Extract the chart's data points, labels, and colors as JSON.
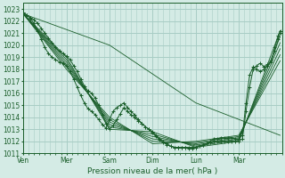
{
  "title": "",
  "xlabel": "Pression niveau de la mer( hPa )",
  "ylabel": "",
  "bg_color": "#d4ebe5",
  "grid_color": "#a8cdc5",
  "line_color": "#1a5e2a",
  "ylim": [
    1011,
    1023.5
  ],
  "yticks": [
    1011,
    1012,
    1013,
    1014,
    1015,
    1016,
    1017,
    1018,
    1019,
    1020,
    1021,
    1022,
    1023
  ],
  "day_labels": [
    "Ven",
    "Mer",
    "Sam",
    "Dim",
    "Lun",
    "Mar"
  ],
  "day_positions": [
    0,
    24,
    48,
    72,
    96,
    120
  ],
  "total_hours": 144,
  "series": [
    {
      "points": [
        [
          0,
          1022.7
        ],
        [
          2,
          1022.5
        ],
        [
          4,
          1022.3
        ],
        [
          6,
          1022.1
        ],
        [
          8,
          1021.8
        ],
        [
          10,
          1021.4
        ],
        [
          12,
          1021.0
        ],
        [
          14,
          1020.6
        ],
        [
          16,
          1020.2
        ],
        [
          18,
          1019.8
        ],
        [
          20,
          1019.5
        ],
        [
          22,
          1019.3
        ],
        [
          24,
          1019.1
        ],
        [
          26,
          1018.8
        ],
        [
          28,
          1018.3
        ],
        [
          30,
          1017.8
        ],
        [
          32,
          1017.2
        ],
        [
          34,
          1016.6
        ],
        [
          36,
          1016.2
        ],
        [
          38,
          1016.0
        ],
        [
          40,
          1015.6
        ],
        [
          42,
          1015.0
        ],
        [
          44,
          1014.2
        ],
        [
          46,
          1013.5
        ],
        [
          48,
          1013.0
        ],
        [
          50,
          1013.3
        ],
        [
          52,
          1013.8
        ],
        [
          54,
          1014.3
        ],
        [
          56,
          1014.8
        ],
        [
          58,
          1014.5
        ],
        [
          60,
          1014.2
        ],
        [
          62,
          1014.0
        ],
        [
          64,
          1013.7
        ],
        [
          66,
          1013.5
        ],
        [
          68,
          1013.2
        ],
        [
          70,
          1013.0
        ],
        [
          72,
          1012.8
        ],
        [
          74,
          1012.5
        ],
        [
          76,
          1012.2
        ],
        [
          78,
          1012.0
        ],
        [
          80,
          1011.8
        ],
        [
          82,
          1011.6
        ],
        [
          84,
          1011.5
        ],
        [
          86,
          1011.5
        ],
        [
          88,
          1011.5
        ],
        [
          90,
          1011.5
        ],
        [
          92,
          1011.4
        ],
        [
          94,
          1011.4
        ],
        [
          96,
          1011.5
        ],
        [
          98,
          1011.6
        ],
        [
          100,
          1011.7
        ],
        [
          102,
          1011.8
        ],
        [
          104,
          1011.9
        ],
        [
          106,
          1012.0
        ],
        [
          108,
          1012.0
        ],
        [
          110,
          1012.0
        ],
        [
          112,
          1012.0
        ],
        [
          114,
          1012.0
        ],
        [
          116,
          1012.0
        ],
        [
          118,
          1012.0
        ],
        [
          120,
          1012.0
        ],
        [
          122,
          1012.2
        ],
        [
          124,
          1014.5
        ],
        [
          126,
          1016.5
        ],
        [
          128,
          1018.0
        ],
        [
          130,
          1018.3
        ],
        [
          132,
          1018.5
        ],
        [
          134,
          1018.2
        ],
        [
          136,
          1018.4
        ],
        [
          138,
          1018.7
        ],
        [
          140,
          1019.5
        ],
        [
          142,
          1020.5
        ],
        [
          143,
          1021.0
        ]
      ],
      "style": "dotted_marker",
      "marker": "+"
    },
    {
      "points": [
        [
          0,
          1022.6
        ],
        [
          24,
          1019.0
        ],
        [
          48,
          1013.0
        ],
        [
          72,
          1012.8
        ],
        [
          96,
          1011.5
        ],
        [
          120,
          1012.0
        ],
        [
          143,
          1021.2
        ]
      ],
      "style": "line_only"
    },
    {
      "points": [
        [
          0,
          1022.6
        ],
        [
          24,
          1018.8
        ],
        [
          48,
          1013.2
        ],
        [
          72,
          1012.6
        ],
        [
          96,
          1011.6
        ],
        [
          120,
          1012.1
        ],
        [
          143,
          1020.7
        ]
      ],
      "style": "line_only"
    },
    {
      "points": [
        [
          0,
          1022.6
        ],
        [
          24,
          1018.6
        ],
        [
          48,
          1013.4
        ],
        [
          72,
          1012.4
        ],
        [
          96,
          1011.7
        ],
        [
          120,
          1012.2
        ],
        [
          143,
          1020.2
        ]
      ],
      "style": "line_only"
    },
    {
      "points": [
        [
          0,
          1022.6
        ],
        [
          24,
          1018.4
        ],
        [
          48,
          1013.6
        ],
        [
          72,
          1012.2
        ],
        [
          96,
          1011.8
        ],
        [
          120,
          1012.3
        ],
        [
          143,
          1019.7
        ]
      ],
      "style": "line_only"
    },
    {
      "points": [
        [
          0,
          1022.6
        ],
        [
          24,
          1018.2
        ],
        [
          48,
          1013.8
        ],
        [
          72,
          1012.0
        ],
        [
          96,
          1011.9
        ],
        [
          120,
          1012.4
        ],
        [
          143,
          1019.2
        ]
      ],
      "style": "line_only"
    },
    {
      "points": [
        [
          0,
          1022.6
        ],
        [
          24,
          1018.0
        ],
        [
          48,
          1014.0
        ],
        [
          72,
          1011.8
        ],
        [
          96,
          1012.0
        ],
        [
          120,
          1012.5
        ],
        [
          143,
          1018.7
        ]
      ],
      "style": "line_only"
    },
    {
      "points": [
        [
          0,
          1022.6
        ],
        [
          48,
          1020.0
        ],
        [
          96,
          1015.2
        ],
        [
          143,
          1012.5
        ]
      ],
      "style": "line_only"
    },
    {
      "points": [
        [
          0,
          1022.7
        ],
        [
          2,
          1022.5
        ],
        [
          4,
          1022.2
        ],
        [
          6,
          1021.8
        ],
        [
          8,
          1021.2
        ],
        [
          10,
          1020.5
        ],
        [
          12,
          1019.8
        ],
        [
          14,
          1019.3
        ],
        [
          16,
          1019.0
        ],
        [
          18,
          1018.8
        ],
        [
          20,
          1018.6
        ],
        [
          22,
          1018.5
        ],
        [
          24,
          1018.3
        ],
        [
          26,
          1017.8
        ],
        [
          28,
          1017.2
        ],
        [
          30,
          1016.5
        ],
        [
          32,
          1015.8
        ],
        [
          34,
          1015.2
        ],
        [
          36,
          1014.7
        ],
        [
          38,
          1014.5
        ],
        [
          40,
          1014.2
        ],
        [
          42,
          1013.8
        ],
        [
          44,
          1013.4
        ],
        [
          46,
          1013.1
        ],
        [
          48,
          1013.8
        ],
        [
          50,
          1014.5
        ],
        [
          52,
          1014.8
        ],
        [
          54,
          1015.0
        ],
        [
          56,
          1015.2
        ],
        [
          58,
          1014.8
        ],
        [
          60,
          1014.5
        ],
        [
          62,
          1014.2
        ],
        [
          64,
          1013.8
        ],
        [
          66,
          1013.5
        ],
        [
          68,
          1013.2
        ],
        [
          70,
          1013.0
        ],
        [
          72,
          1012.7
        ],
        [
          74,
          1012.4
        ],
        [
          76,
          1012.1
        ],
        [
          78,
          1011.9
        ],
        [
          80,
          1011.7
        ],
        [
          82,
          1011.6
        ],
        [
          84,
          1011.5
        ],
        [
          86,
          1011.5
        ],
        [
          88,
          1011.5
        ],
        [
          90,
          1011.5
        ],
        [
          92,
          1011.5
        ],
        [
          94,
          1011.5
        ],
        [
          96,
          1011.5
        ],
        [
          98,
          1011.6
        ],
        [
          100,
          1011.7
        ],
        [
          102,
          1011.8
        ],
        [
          104,
          1012.0
        ],
        [
          106,
          1012.2
        ],
        [
          108,
          1012.2
        ],
        [
          110,
          1012.3
        ],
        [
          112,
          1012.3
        ],
        [
          114,
          1012.3
        ],
        [
          116,
          1012.3
        ],
        [
          118,
          1012.2
        ],
        [
          120,
          1012.2
        ],
        [
          122,
          1012.5
        ],
        [
          124,
          1015.2
        ],
        [
          126,
          1017.5
        ],
        [
          128,
          1018.2
        ],
        [
          130,
          1018.0
        ],
        [
          132,
          1017.8
        ],
        [
          134,
          1018.0
        ],
        [
          136,
          1018.3
        ],
        [
          138,
          1018.6
        ],
        [
          140,
          1019.8
        ],
        [
          142,
          1020.8
        ],
        [
          143,
          1021.2
        ]
      ],
      "style": "dotted_marker",
      "marker": "+"
    }
  ]
}
